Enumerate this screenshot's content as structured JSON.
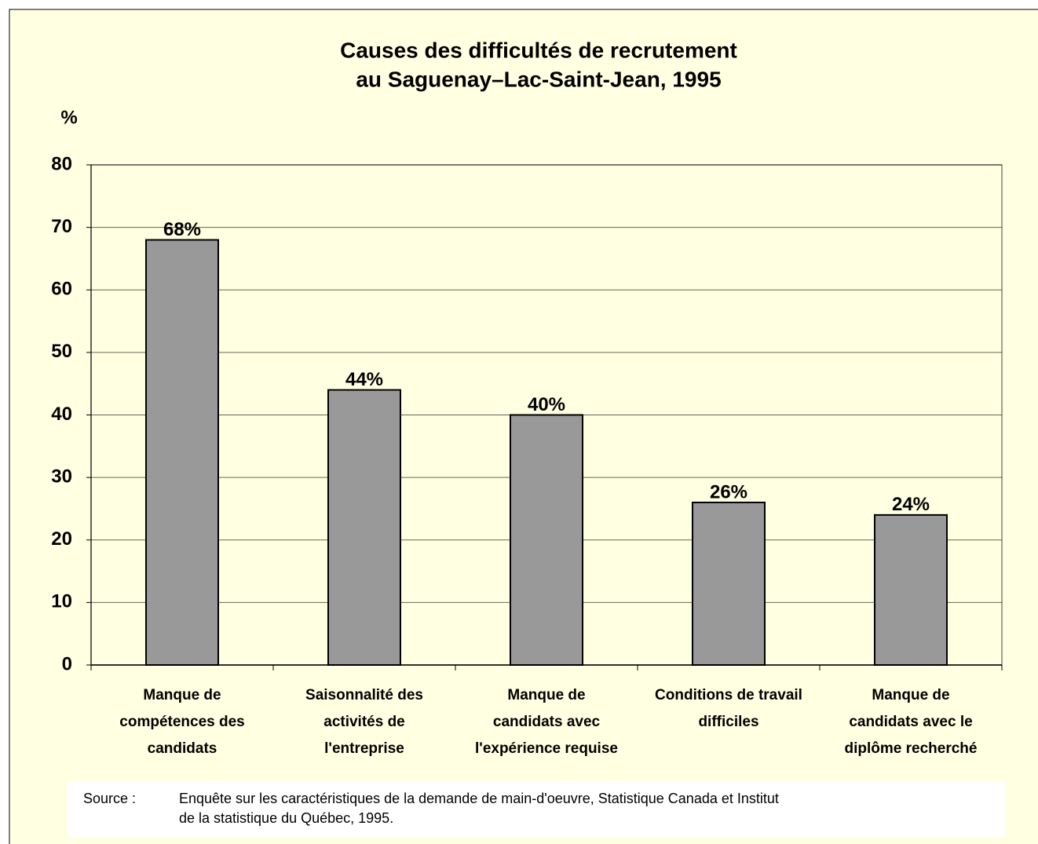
{
  "chart_data": {
    "type": "bar",
    "title": [
      "Causes des difficultés de recrutement",
      "au Saguenay–Lac-Saint-Jean, 1995"
    ],
    "y_label": "%",
    "categories": [
      [
        "Manque de",
        "compétences des",
        "candidats"
      ],
      [
        "Saisonnalité des",
        "activités de",
        "l'entreprise"
      ],
      [
        "Manque de",
        "candidats avec",
        "l'expérience requise"
      ],
      [
        "Conditions de travail",
        "difficiles"
      ],
      [
        "Manque de",
        "candidats avec le",
        "diplôme recherché"
      ]
    ],
    "values": [
      68,
      44,
      40,
      26,
      24
    ],
    "value_labels": [
      "68%",
      "44%",
      "40%",
      "26%",
      "24%"
    ],
    "color": "#999999",
    "ylim": [
      0,
      80
    ],
    "yticks": [
      0,
      10,
      20,
      30,
      40,
      50,
      60,
      70,
      80
    ],
    "grid": true,
    "source": {
      "label": "Source :",
      "lines": [
        "Enquête sur les caractéristiques de la demande de main-d'oeuvre, Statistique Canada et Institut",
        "de la statistique du Québec, 1995."
      ]
    }
  }
}
